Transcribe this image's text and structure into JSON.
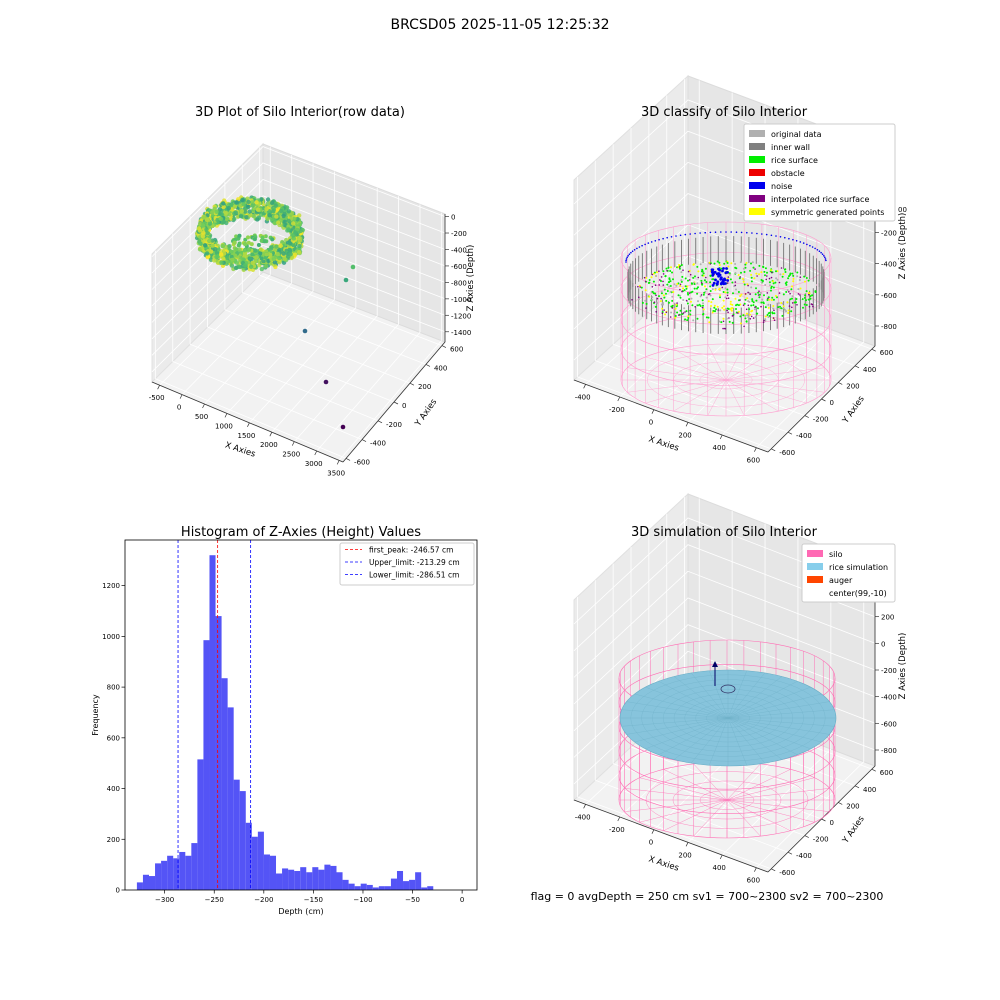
{
  "figure_title": "BRCSD05 2025-11-05 12:25:32",
  "chart_data": [
    {
      "type": "scatter",
      "title": "3D Plot of Silo Interior(row data)",
      "xlabel": "X Axies",
      "ylabel": "Y Axies",
      "zlabel": "Z Axies (Depth)",
      "x_ticks": [
        "-500",
        "0",
        "500",
        "1000",
        "1500",
        "2000",
        "2500",
        "3000",
        "3500"
      ],
      "y_ticks": [
        "-600",
        "-400",
        "-200",
        "0",
        "200",
        "400",
        "600"
      ],
      "z_ticks": [
        "0",
        "-200",
        "-400",
        "-600",
        "-800",
        "-1000",
        "-1200",
        "-1400"
      ],
      "xlim": [
        -600,
        3600
      ],
      "ylim": [
        -700,
        700
      ],
      "zlim": [
        -1500,
        100
      ],
      "grid": true,
      "colormap": [
        "#440154",
        "#31688e",
        "#35b779",
        "#fde725"
      ],
      "outliers": [
        {
          "x": 3300,
          "y": -650,
          "z": -1450
        },
        {
          "x": 2600,
          "y": -450,
          "z": -1250
        },
        {
          "x": 1800,
          "y": -150,
          "z": -950
        },
        {
          "x": 1100,
          "y": 150,
          "z": -650
        },
        {
          "x": 900,
          "y": 350,
          "z": -550
        }
      ]
    },
    {
      "type": "scatter",
      "title": "3D classify of Silo Interior",
      "xlabel": "X Axies",
      "ylabel": "Y Axies",
      "zlabel": "Z Axies (Depth)",
      "x_ticks": [
        "-400",
        "-200",
        "0",
        "200",
        "400",
        "600"
      ],
      "y_ticks": [
        "-600",
        "-400",
        "-200",
        "0",
        "200",
        "400",
        "600"
      ],
      "z_ticks": [
        "200",
        "0",
        "-200",
        "-400",
        "-600",
        "-800"
      ],
      "z_top_tick": "00",
      "xlim": [
        -500,
        700
      ],
      "ylim": [
        -700,
        700
      ],
      "zlim": [
        -900,
        400
      ],
      "grid": true,
      "legend_position": "top-right",
      "legend": [
        {
          "label": "original data",
          "color": "#b0b0b0"
        },
        {
          "label": "inner wall",
          "color": "#808080"
        },
        {
          "label": "rice surface",
          "color": "#00ee00"
        },
        {
          "label": "obstacle",
          "color": "#ee0000"
        },
        {
          "label": "noise",
          "color": "#0000ee"
        },
        {
          "label": "interpolated rice surface",
          "color": "#800080"
        },
        {
          "label": "symmetric generated points",
          "color": "#ffff00"
        }
      ],
      "colors": {
        "silo_wire": "#ff9ecf"
      }
    },
    {
      "type": "bar",
      "title": "Histogram of Z-Axies (Height) Values",
      "xlabel": "Depth (cm)",
      "ylabel": "Frequency",
      "xlim": [
        -340,
        15
      ],
      "ylim": [
        0,
        1380
      ],
      "x_ticks": [
        -300,
        -250,
        -200,
        -150,
        -100,
        -50,
        0
      ],
      "y_ticks": [
        0,
        200,
        400,
        600,
        800,
        1000,
        1200
      ],
      "bin_start": -328,
      "bin_width": 6.1,
      "values": [
        30,
        60,
        55,
        105,
        115,
        135,
        125,
        150,
        135,
        185,
        515,
        985,
        1320,
        1080,
        835,
        720,
        435,
        390,
        265,
        210,
        230,
        140,
        135,
        65,
        85,
        80,
        75,
        90,
        70,
        90,
        80,
        100,
        95,
        70,
        40,
        25,
        15,
        25,
        20,
        10,
        15,
        15,
        45,
        75,
        35,
        40,
        70,
        10,
        15
      ],
      "bar_color": "#4b4bf5",
      "legend_position": "top-right",
      "lines": [
        {
          "label": "first_peak: -246.57 cm",
          "value": -246.57,
          "color": "#ff0000"
        },
        {
          "label": "Upper_limit: -213.29 cm",
          "value": -213.29,
          "color": "#0000ff"
        },
        {
          "label": "Lower_limit: -286.51 cm",
          "value": -286.51,
          "color": "#0000ff"
        }
      ]
    },
    {
      "type": "scatter",
      "title": "3D simulation of Silo Interior",
      "xlabel": "X Axies",
      "ylabel": "Y Axies",
      "zlabel": "Z Axies (Depth)",
      "x_ticks": [
        "-400",
        "-200",
        "0",
        "200",
        "400",
        "600"
      ],
      "y_ticks": [
        "-600",
        "-400",
        "-200",
        "0",
        "200",
        "400",
        "600"
      ],
      "z_ticks": [
        "400",
        "200",
        "0",
        "-200",
        "-400",
        "-600",
        "-800"
      ],
      "xlim": [
        -500,
        700
      ],
      "ylim": [
        -700,
        700
      ],
      "zlim": [
        -900,
        450
      ],
      "grid": true,
      "legend_position": "top-right",
      "legend": [
        {
          "label": "silo",
          "color": "#ff69b4"
        },
        {
          "label": "rice simulation",
          "color": "#87ceeb"
        },
        {
          "label": "auger",
          "color": "#ff4500"
        },
        {
          "label": "center(99,-10)",
          "color": "#ffffff"
        }
      ],
      "colors": {
        "silo_wire": "#ff6fb5",
        "rice": "#87c4dc"
      }
    }
  ],
  "status_line": "flag = 0     avgDepth = 250 cm  sv1 = 700~2300  sv2 = 700~2300"
}
